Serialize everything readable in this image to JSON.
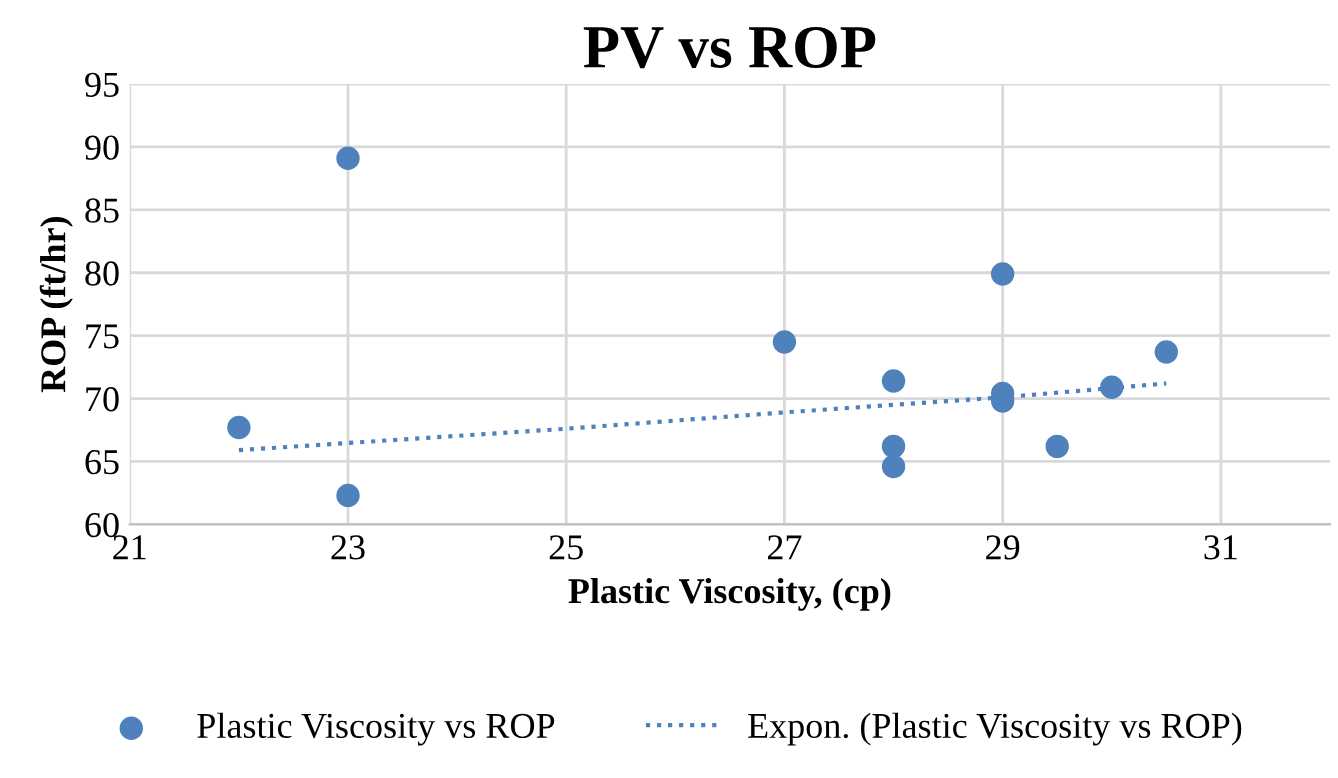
{
  "chart_data": {
    "type": "scatter",
    "title": "PV vs ROP",
    "xlabel": "Plastic Viscosity, (cp)",
    "ylabel": "ROP (ft/hr)",
    "xlim": [
      21,
      32
    ],
    "xticks": [
      21,
      23,
      25,
      27,
      29,
      31
    ],
    "ylim": [
      60,
      95
    ],
    "yticks": [
      60,
      65,
      70,
      75,
      80,
      85,
      90,
      95
    ],
    "grid": true,
    "legend": "bottom",
    "series": [
      {
        "name": "Plastic Viscosity vs ROP",
        "marker": "circle",
        "color": "#4f81bd",
        "x": [
          22,
          23,
          23,
          27,
          28,
          28,
          28,
          29,
          29,
          29,
          29.5,
          30,
          30.5
        ],
        "values": [
          67.7,
          89.1,
          62.3,
          74.5,
          71.4,
          66.2,
          64.6,
          79.9,
          70.4,
          69.8,
          66.2,
          70.9,
          73.7
        ]
      },
      {
        "name": "Expon. (Plastic Viscosity vs ROP)",
        "type": "line",
        "line_style": "dotted",
        "color": "#4f81bd",
        "x": [
          22,
          25,
          27,
          29,
          30.5
        ],
        "values": [
          65.9,
          67.6,
          68.9,
          70.1,
          71.2
        ]
      }
    ]
  }
}
